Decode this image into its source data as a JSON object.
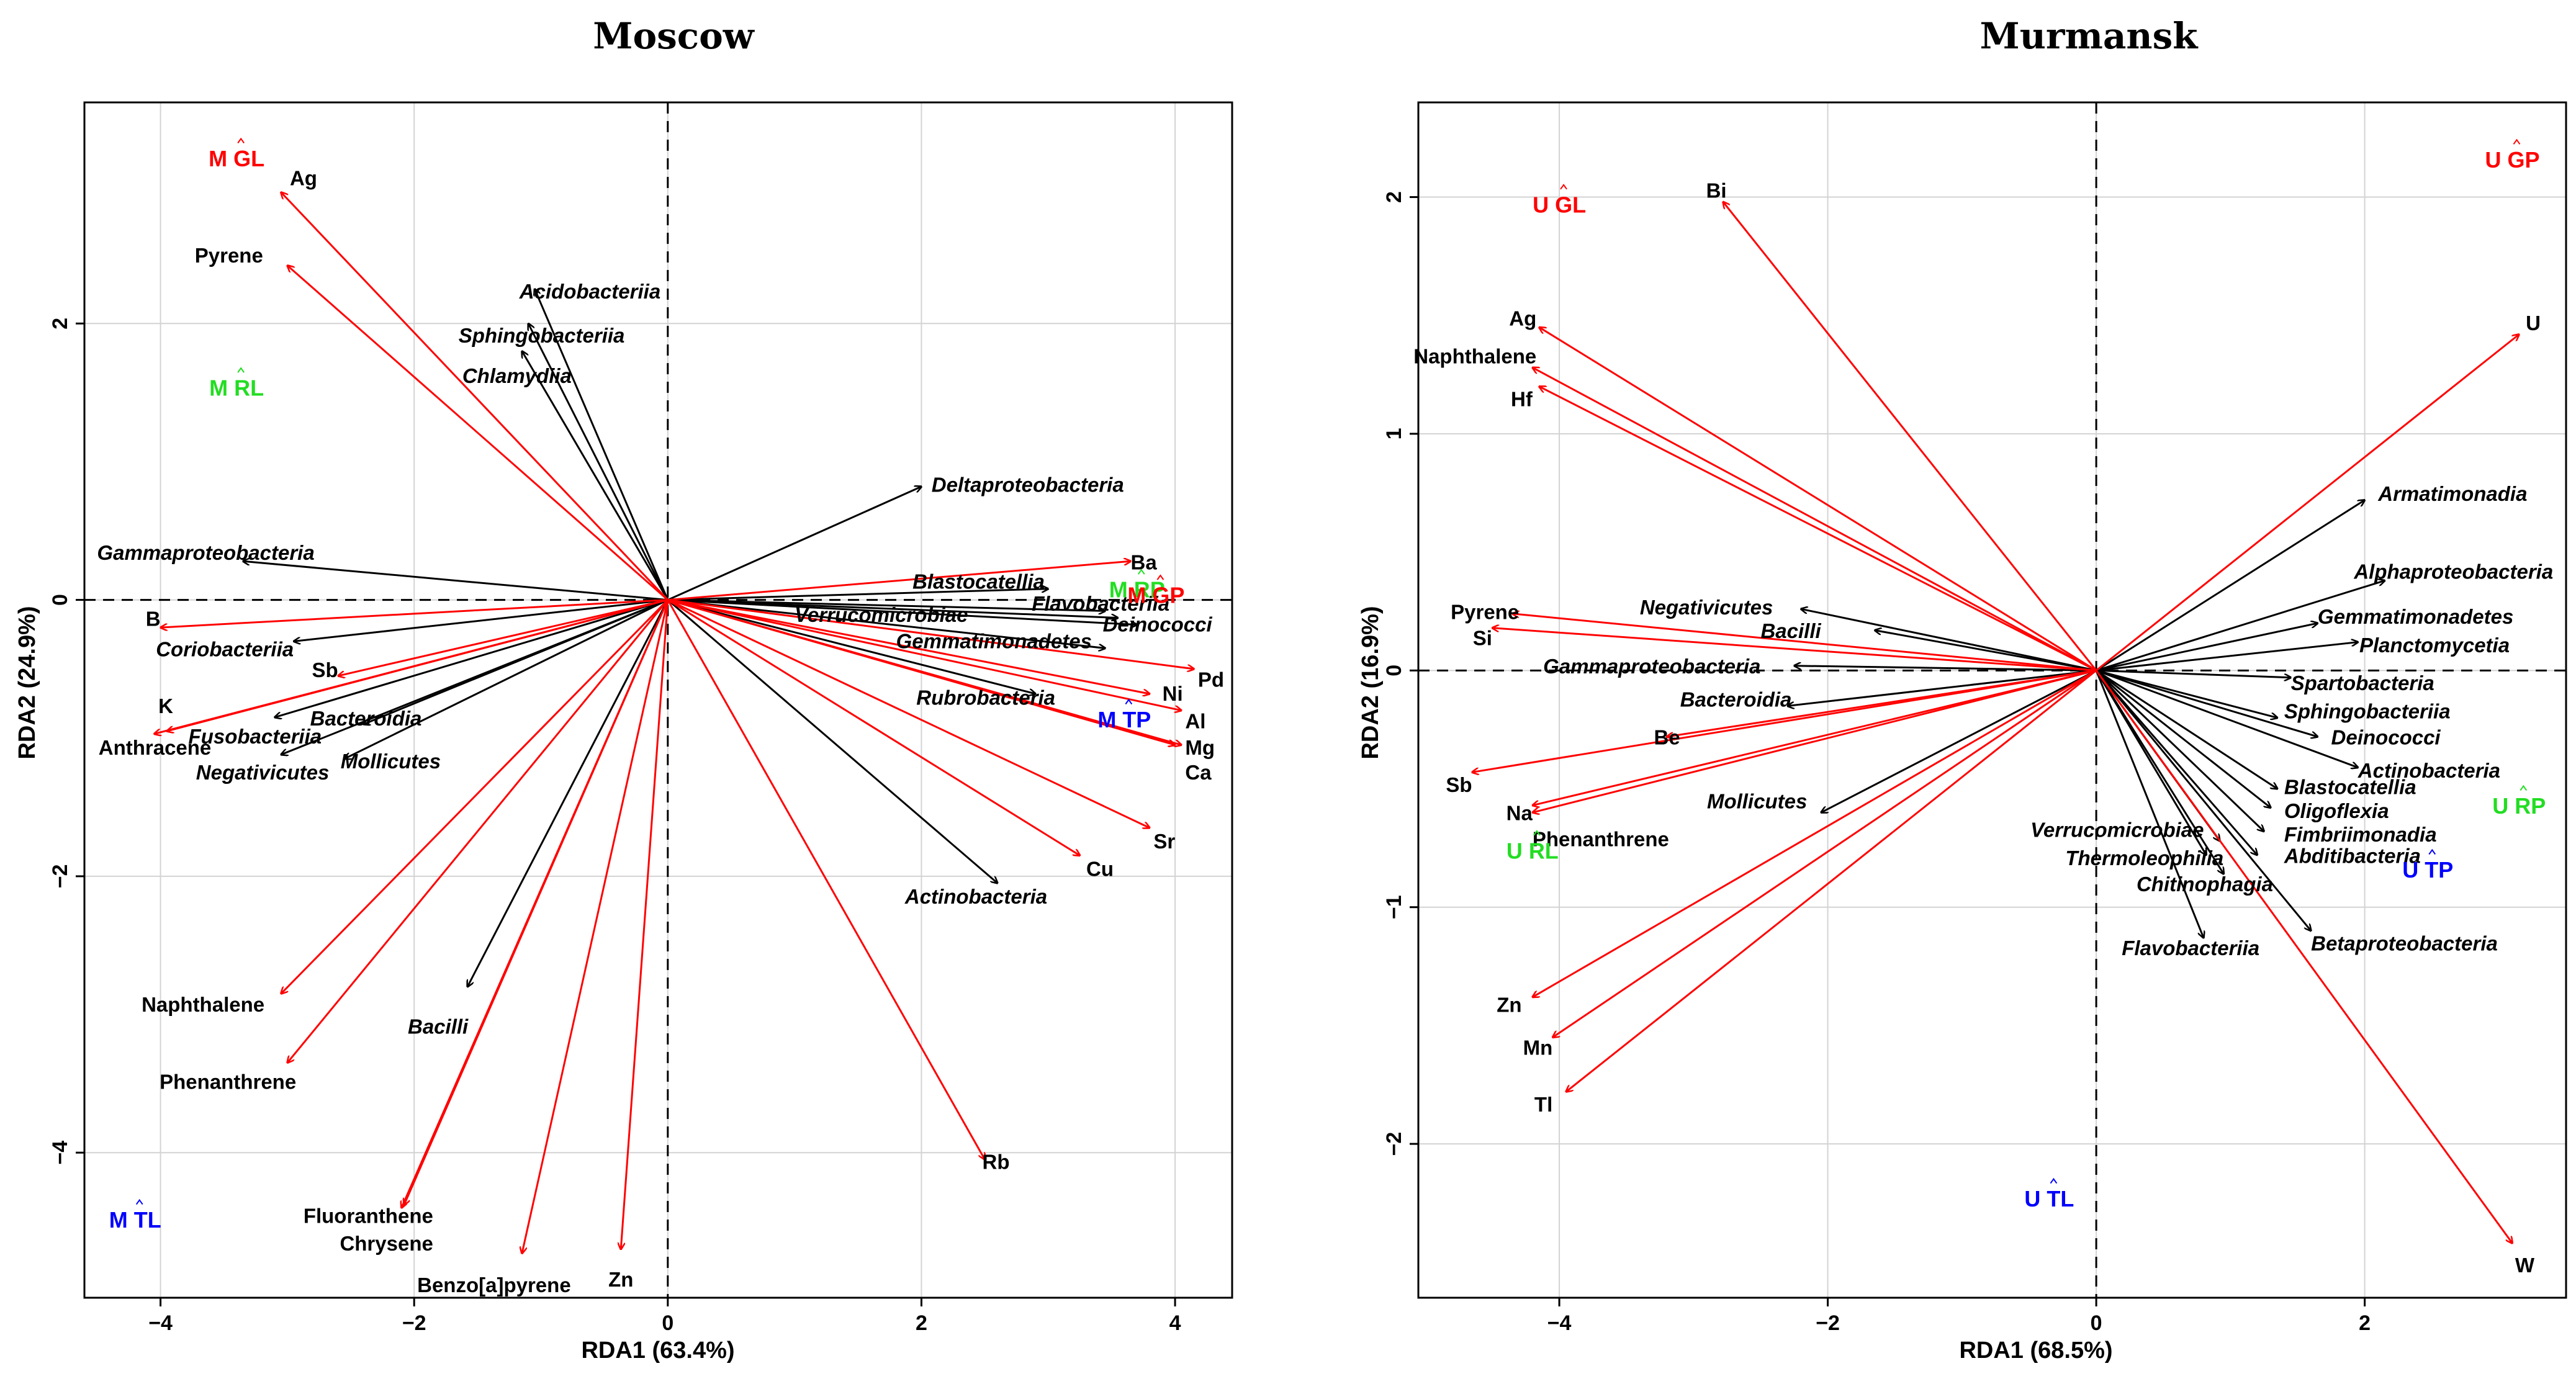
{
  "chart_data": [
    {
      "type": "scatter",
      "subtype": "rda-biplot",
      "title": "Moscow",
      "xlabel": "RDA1 (63.4%)",
      "ylabel": "RDA2 (24.9%)",
      "xlim": [
        -4.6,
        4.45
      ],
      "ylim": [
        -5.05,
        3.6
      ],
      "xticks": [
        -4,
        -2,
        0,
        2,
        4
      ],
      "yticks": [
        -4,
        -2,
        0,
        2
      ],
      "tick_labels_x": [
        "−4",
        "−2",
        "0",
        "2",
        "4"
      ],
      "tick_labels_y": [
        "−4",
        "−2",
        "0",
        "2"
      ],
      "grid": true,
      "env_color": "#ff0000",
      "taxa_color": "#000000",
      "env_arrows": [
        {
          "name": "Ag",
          "x": -3.05,
          "y": 2.95,
          "lx": -2.98,
          "ly": 3.04,
          "anchor": "start"
        },
        {
          "name": "Pyrene",
          "x": -3.0,
          "y": 2.42,
          "lx": -3.73,
          "ly": 2.48,
          "anchor": "start"
        },
        {
          "name": "B",
          "x": -4.0,
          "y": -0.2,
          "lx": -4.0,
          "ly": -0.15,
          "anchor": "end"
        },
        {
          "name": "Sb",
          "x": -2.6,
          "y": -0.55,
          "lx": -2.6,
          "ly": -0.52,
          "anchor": "end"
        },
        {
          "name": "K",
          "x": -3.95,
          "y": -0.95,
          "lx": -3.9,
          "ly": -0.78,
          "anchor": "end"
        },
        {
          "name": "Anthracene",
          "x": -4.05,
          "y": -0.97,
          "lx": -3.6,
          "ly": -1.08,
          "anchor": "end"
        },
        {
          "name": "Naphthalene",
          "x": -3.05,
          "y": -2.85,
          "lx": -3.18,
          "ly": -2.94,
          "anchor": "end"
        },
        {
          "name": "Phenanthrene",
          "x": -3.0,
          "y": -3.35,
          "lx": -2.93,
          "ly": -3.5,
          "anchor": "end"
        },
        {
          "name": "Fluoranthene",
          "x": -2.1,
          "y": -4.4,
          "lx": -1.85,
          "ly": -4.47,
          "anchor": "end"
        },
        {
          "name": "Chrysene",
          "x": -2.08,
          "y": -4.38,
          "lx": -1.85,
          "ly": -4.67,
          "anchor": "end"
        },
        {
          "name": "Benzo[a]pyrene",
          "x": -1.15,
          "y": -4.73,
          "lx": -1.37,
          "ly": -4.97,
          "anchor": "middle"
        },
        {
          "name": "Zn",
          "x": -0.37,
          "y": -4.7,
          "lx": -0.37,
          "ly": -4.93,
          "anchor": "middle"
        },
        {
          "name": "Rb",
          "x": 2.5,
          "y": -4.05,
          "lx": 2.48,
          "ly": -4.08,
          "anchor": "start"
        },
        {
          "name": "Cu",
          "x": 3.25,
          "y": -1.85,
          "lx": 3.3,
          "ly": -1.96,
          "anchor": "start"
        },
        {
          "name": "Sr",
          "x": 3.8,
          "y": -1.65,
          "lx": 3.83,
          "ly": -1.76,
          "anchor": "start"
        },
        {
          "name": "Ca",
          "x": 4.0,
          "y": -1.05,
          "lx": 4.08,
          "ly": -1.26,
          "anchor": "start"
        },
        {
          "name": "Mg",
          "x": 4.05,
          "y": -1.05,
          "lx": 4.08,
          "ly": -1.08,
          "anchor": "start"
        },
        {
          "name": "Al",
          "x": 4.05,
          "y": -0.8,
          "lx": 4.08,
          "ly": -0.89,
          "anchor": "start"
        },
        {
          "name": "Ni",
          "x": 3.8,
          "y": -0.68,
          "lx": 3.9,
          "ly": -0.69,
          "anchor": "start"
        },
        {
          "name": "Pd",
          "x": 4.15,
          "y": -0.5,
          "lx": 4.18,
          "ly": -0.59,
          "anchor": "start"
        },
        {
          "name": "Ba",
          "x": 3.65,
          "y": 0.28,
          "lx": 3.65,
          "ly": 0.26,
          "anchor": "start"
        }
      ],
      "taxa_arrows": [
        {
          "name": "Acidobacteriia",
          "x": -1.05,
          "y": 2.25,
          "lx": -1.17,
          "ly": 2.22,
          "anchor": "start"
        },
        {
          "name": "Sphingobacteriia",
          "x": -1.1,
          "y": 2.0,
          "lx": -1.65,
          "ly": 1.9,
          "anchor": "start"
        },
        {
          "name": "Chlamydiia",
          "x": -1.15,
          "y": 1.8,
          "lx": -1.62,
          "ly": 1.61,
          "anchor": "start"
        },
        {
          "name": "Gammaproteobacteria",
          "x": -3.35,
          "y": 0.28,
          "lx": -4.5,
          "ly": 0.33,
          "anchor": "start"
        },
        {
          "name": "Coriobacteriia",
          "x": -2.95,
          "y": -0.3,
          "lx": -2.95,
          "ly": -0.37,
          "anchor": "end"
        },
        {
          "name": "Fusobacteriia",
          "x": -3.1,
          "y": -0.85,
          "lx": -3.78,
          "ly": -1.0,
          "anchor": "start"
        },
        {
          "name": "Bacteroidia",
          "x": -2.4,
          "y": -0.9,
          "lx": -2.82,
          "ly": -0.87,
          "anchor": "start"
        },
        {
          "name": "Negativicutes",
          "x": -3.05,
          "y": -1.12,
          "lx": -3.72,
          "ly": -1.26,
          "anchor": "start"
        },
        {
          "name": "Mollicutes",
          "x": -2.55,
          "y": -1.15,
          "lx": -2.58,
          "ly": -1.18,
          "anchor": "start"
        },
        {
          "name": "Bacilli",
          "x": -1.58,
          "y": -2.8,
          "lx": -2.05,
          "ly": -3.1,
          "anchor": "start"
        },
        {
          "name": "Deltaproteobacteria",
          "x": 2.0,
          "y": 0.82,
          "lx": 2.08,
          "ly": 0.82,
          "anchor": "start"
        },
        {
          "name": "Blastocatellia",
          "x": 3.0,
          "y": 0.08,
          "lx": 1.93,
          "ly": 0.12,
          "anchor": "start"
        },
        {
          "name": "Flavobacteriia",
          "x": 3.45,
          "y": -0.08,
          "lx": 2.87,
          "ly": -0.04,
          "anchor": "start"
        },
        {
          "name": "Verrucomicrobiae",
          "x": 3.55,
          "y": -0.13,
          "lx": 1.0,
          "ly": -0.12,
          "anchor": "start"
        },
        {
          "name": "Deinococci",
          "x": 3.7,
          "y": -0.18,
          "lx": 3.43,
          "ly": -0.19,
          "anchor": "start"
        },
        {
          "name": "Gemmatimonadetes",
          "x": 3.45,
          "y": -0.35,
          "lx": 1.8,
          "ly": -0.31,
          "anchor": "start"
        },
        {
          "name": "Rubrobacteria",
          "x": 2.9,
          "y": -0.68,
          "lx": 1.96,
          "ly": -0.72,
          "anchor": "start"
        },
        {
          "name": "Actinobacteria",
          "x": 2.6,
          "y": -2.05,
          "lx": 1.87,
          "ly": -2.16,
          "anchor": "start"
        }
      ],
      "sites": [
        {
          "name": "M GL",
          "x": -3.4,
          "y": 3.18,
          "color": "#ff0000"
        },
        {
          "name": "M RL",
          "x": -3.4,
          "y": 1.52,
          "color": "#22dd22"
        },
        {
          "name": "M RP",
          "x": 3.7,
          "y": 0.06,
          "color": "#22dd22"
        },
        {
          "name": "M GP",
          "x": 3.85,
          "y": 0.02,
          "color": "#ff0000"
        },
        {
          "name": "M TP",
          "x": 3.6,
          "y": -0.88,
          "color": "#0000ff"
        },
        {
          "name": "M TL",
          "x": -4.2,
          "y": -4.5,
          "color": "#0000ff"
        }
      ]
    },
    {
      "type": "scatter",
      "subtype": "rda-biplot",
      "title": "Murmansk",
      "xlabel": "RDA1 (68.5%)",
      "ylabel": "RDA2 (16.9%)",
      "xlim": [
        -5.05,
        3.5
      ],
      "ylim": [
        -2.65,
        2.4
      ],
      "xticks": [
        -4,
        -2,
        0,
        2
      ],
      "yticks": [
        -2,
        -1,
        0,
        1,
        2
      ],
      "tick_labels_x": [
        "−4",
        "−2",
        "0",
        "2"
      ],
      "tick_labels_y": [
        "−2",
        "−1",
        "0",
        "1",
        "2"
      ],
      "grid": true,
      "env_color": "#ff0000",
      "taxa_color": "#000000",
      "env_arrows": [
        {
          "name": "Bi",
          "x": -2.78,
          "y": 1.98,
          "lx": -2.83,
          "ly": 2.02,
          "anchor": "middle"
        },
        {
          "name": "Ag",
          "x": -4.15,
          "y": 1.45,
          "lx": -4.17,
          "ly": 1.48,
          "anchor": "end"
        },
        {
          "name": "Naphthalene",
          "x": -4.2,
          "y": 1.28,
          "lx": -4.17,
          "ly": 1.32,
          "anchor": "end"
        },
        {
          "name": "Hf",
          "x": -4.15,
          "y": 1.2,
          "lx": -4.2,
          "ly": 1.14,
          "anchor": "end"
        },
        {
          "name": "Pyrene",
          "x": -4.35,
          "y": 0.24,
          "lx": -4.3,
          "ly": 0.24,
          "anchor": "end"
        },
        {
          "name": "Si",
          "x": -4.5,
          "y": 0.18,
          "lx": -4.5,
          "ly": 0.13,
          "anchor": "end"
        },
        {
          "name": "Be",
          "x": -3.2,
          "y": -0.28,
          "lx": -3.1,
          "ly": -0.29,
          "anchor": "end"
        },
        {
          "name": "Sb",
          "x": -4.65,
          "y": -0.43,
          "lx": -4.65,
          "ly": -0.49,
          "anchor": "end"
        },
        {
          "name": "Na",
          "x": -4.2,
          "y": -0.57,
          "lx": -4.2,
          "ly": -0.61,
          "anchor": "end"
        },
        {
          "name": "Phenanthrene",
          "x": -4.2,
          "y": -0.6,
          "lx": -4.2,
          "ly": -0.72,
          "anchor": "start"
        },
        {
          "name": "Zn",
          "x": -4.2,
          "y": -1.38,
          "lx": -4.28,
          "ly": -1.42,
          "anchor": "end"
        },
        {
          "name": "Mn",
          "x": -4.05,
          "y": -1.55,
          "lx": -4.05,
          "ly": -1.6,
          "anchor": "end"
        },
        {
          "name": "Tl",
          "x": -3.95,
          "y": -1.78,
          "lx": -4.05,
          "ly": -1.84,
          "anchor": "end"
        },
        {
          "name": "U",
          "x": 3.15,
          "y": 1.42,
          "lx": 3.2,
          "ly": 1.46,
          "anchor": "start"
        },
        {
          "name": "W",
          "x": 3.1,
          "y": -2.42,
          "lx": 3.12,
          "ly": -2.52,
          "anchor": "start"
        }
      ],
      "taxa_arrows": [
        {
          "name": "Armatimonadia",
          "x": 2.0,
          "y": 0.72,
          "lx": 2.1,
          "ly": 0.74,
          "anchor": "start"
        },
        {
          "name": "Alphaproteobacteria",
          "x": 2.15,
          "y": 0.38,
          "lx": 1.92,
          "ly": 0.41,
          "anchor": "start"
        },
        {
          "name": "Gemmatimonadetes",
          "x": 1.65,
          "y": 0.2,
          "lx": 1.65,
          "ly": 0.22,
          "anchor": "start"
        },
        {
          "name": "Planctomycetia",
          "x": 1.95,
          "y": 0.12,
          "lx": 1.96,
          "ly": 0.1,
          "anchor": "start"
        },
        {
          "name": "Spartobacteria",
          "x": 1.45,
          "y": -0.03,
          "lx": 1.45,
          "ly": -0.06,
          "anchor": "start"
        },
        {
          "name": "Sphingobacteriia",
          "x": 1.35,
          "y": -0.2,
          "lx": 1.4,
          "ly": -0.18,
          "anchor": "start"
        },
        {
          "name": "Deinococci",
          "x": 1.65,
          "y": -0.28,
          "lx": 1.75,
          "ly": -0.29,
          "anchor": "start"
        },
        {
          "name": "Actinobacteria",
          "x": 1.95,
          "y": -0.41,
          "lx": 1.95,
          "ly": -0.43,
          "anchor": "start"
        },
        {
          "name": "Blastocatellia",
          "x": 1.35,
          "y": -0.5,
          "lx": 1.4,
          "ly": -0.5,
          "anchor": "start"
        },
        {
          "name": "Oligoflexia",
          "x": 1.3,
          "y": -0.58,
          "lx": 1.4,
          "ly": -0.6,
          "anchor": "start"
        },
        {
          "name": "Fimbriimonadia",
          "x": 1.25,
          "y": -0.68,
          "lx": 1.4,
          "ly": -0.7,
          "anchor": "start"
        },
        {
          "name": "Abditibacteria",
          "x": 1.2,
          "y": -0.78,
          "lx": 1.4,
          "ly": -0.79,
          "anchor": "start"
        },
        {
          "name": "Verrucomicrobiae",
          "x": 0.92,
          "y": -0.72,
          "lx": -0.49,
          "ly": -0.68,
          "anchor": "start"
        },
        {
          "name": "Thermoleophilia",
          "x": 0.82,
          "y": -0.78,
          "lx": -0.23,
          "ly": -0.8,
          "anchor": "start"
        },
        {
          "name": "Chitinophagia",
          "x": 0.95,
          "y": -0.86,
          "lx": 0.3,
          "ly": -0.91,
          "anchor": "start"
        },
        {
          "name": "Flavobacteriia",
          "x": 0.8,
          "y": -1.13,
          "lx": 0.19,
          "ly": -1.18,
          "anchor": "start"
        },
        {
          "name": "Betaproteobacteria",
          "x": 1.6,
          "y": -1.1,
          "lx": 1.6,
          "ly": -1.16,
          "anchor": "start"
        },
        {
          "name": "Negativicutes",
          "x": -2.2,
          "y": 0.26,
          "lx": -3.4,
          "ly": 0.26,
          "anchor": "start"
        },
        {
          "name": "Bacilli",
          "x": -1.65,
          "y": 0.17,
          "lx": -2.5,
          "ly": 0.16,
          "anchor": "start"
        },
        {
          "name": "Gammaproteobacteria",
          "x": -2.25,
          "y": 0.02,
          "lx": -4.12,
          "ly": 0.01,
          "anchor": "start"
        },
        {
          "name": "Bacteroidia",
          "x": -2.3,
          "y": -0.15,
          "lx": -3.1,
          "ly": -0.13,
          "anchor": "start"
        },
        {
          "name": "Mollicutes",
          "x": -2.05,
          "y": -0.6,
          "lx": -2.9,
          "ly": -0.56,
          "anchor": "start"
        }
      ],
      "sites": [
        {
          "name": "U GP",
          "x": 3.1,
          "y": 2.15,
          "color": "#ff0000"
        },
        {
          "name": "U GL",
          "x": -4.0,
          "y": 1.96,
          "color": "#ff0000"
        },
        {
          "name": "U RL",
          "x": -4.2,
          "y": -0.77,
          "color": "#22dd22"
        },
        {
          "name": "U RP",
          "x": 3.15,
          "y": -0.58,
          "color": "#22dd22"
        },
        {
          "name": "U TP",
          "x": 2.47,
          "y": -0.85,
          "color": "#0000ff"
        },
        {
          "name": "U TL",
          "x": -0.35,
          "y": -2.24,
          "color": "#0000ff"
        }
      ]
    }
  ]
}
